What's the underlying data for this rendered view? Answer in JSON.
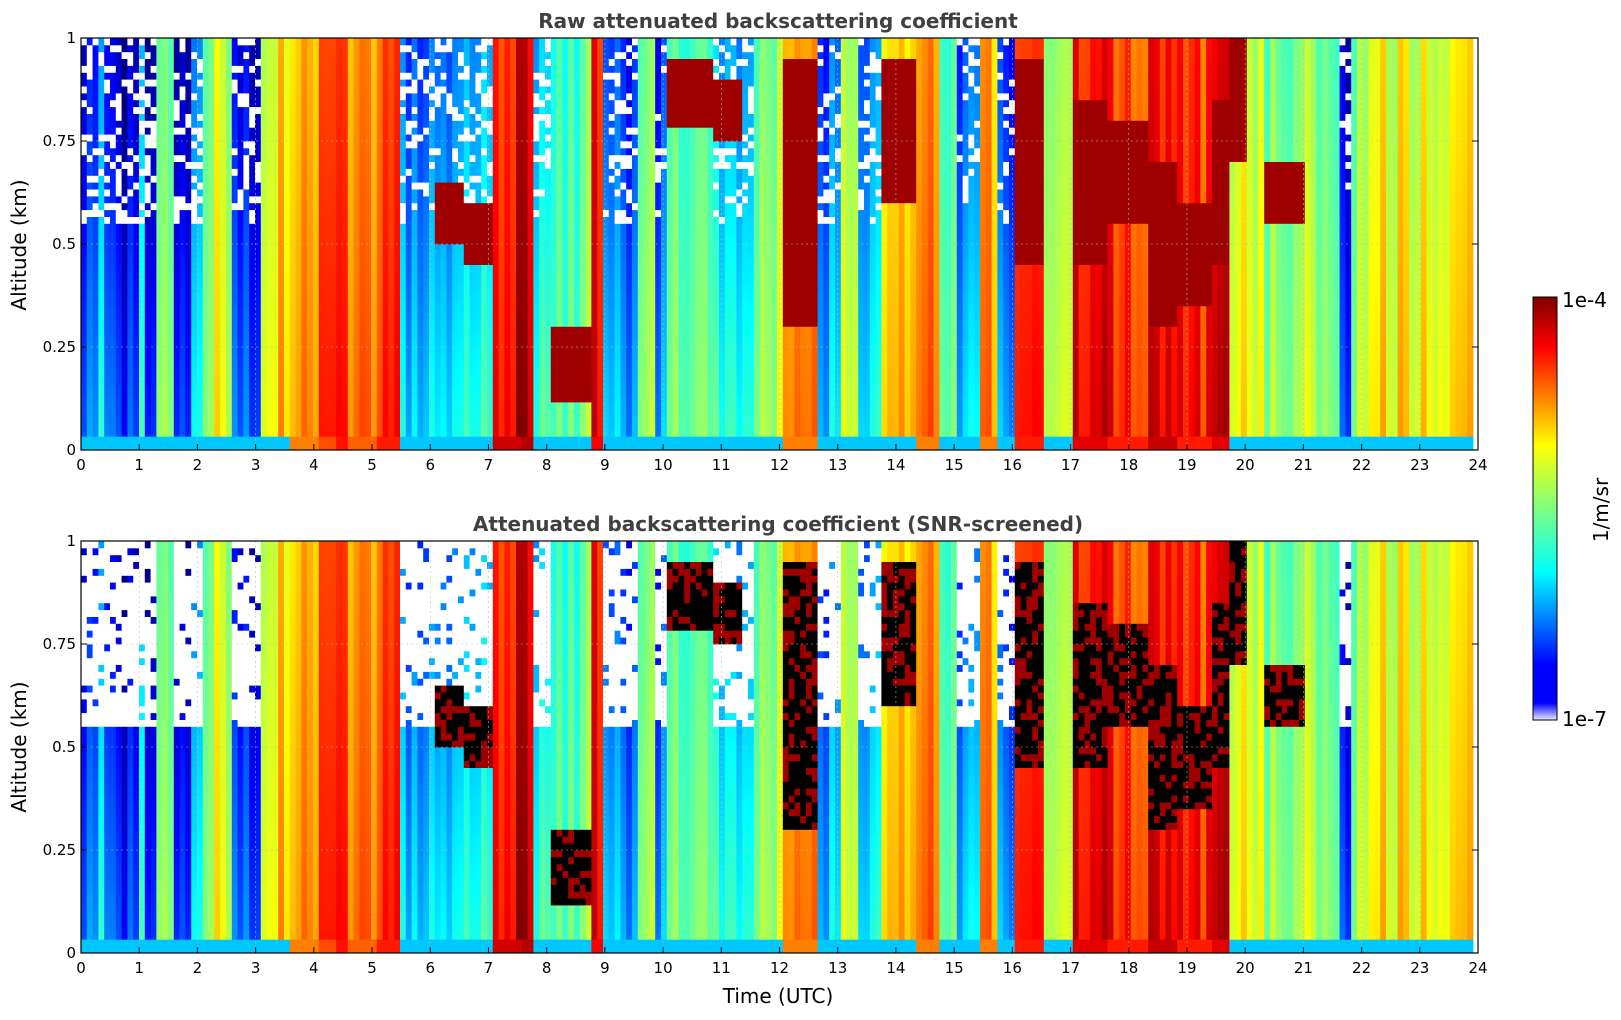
{
  "chart_data": [
    {
      "type": "heatmap",
      "title": "Raw attenuated backscattering coefficient",
      "ylabel": "Altitude (km)",
      "xlabel": "",
      "xlim": [
        0,
        24
      ],
      "ylim": [
        0,
        1
      ],
      "xticks": [
        "0",
        "1",
        "2",
        "3",
        "4",
        "5",
        "6",
        "7",
        "8",
        "9",
        "10",
        "11",
        "12",
        "13",
        "14",
        "15",
        "16",
        "17",
        "18",
        "19",
        "20",
        "21",
        "22",
        "23",
        "24"
      ],
      "yticks": [
        "0",
        "0.25",
        "0.5",
        "0.75",
        "1"
      ],
      "grid": true,
      "screened": false
    },
    {
      "type": "heatmap",
      "title": "Attenuated backscattering coefficient (SNR-screened)",
      "ylabel": "Altitude (km)",
      "xlabel": "Time (UTC)",
      "xlim": [
        0,
        24
      ],
      "ylim": [
        0,
        1
      ],
      "xticks": [
        "0",
        "1",
        "2",
        "3",
        "4",
        "5",
        "6",
        "7",
        "8",
        "9",
        "10",
        "11",
        "12",
        "13",
        "14",
        "15",
        "16",
        "17",
        "18",
        "19",
        "20",
        "21",
        "22",
        "23",
        "24"
      ],
      "yticks": [
        "0",
        "0.25",
        "0.5",
        "0.75",
        "1"
      ],
      "grid": true,
      "screened": true
    }
  ],
  "colorbar": {
    "label": "1/m/sr",
    "min_label": "1e-7",
    "max_label": "1e-4",
    "scale": "log",
    "colormap": "jet"
  },
  "profile": [
    {
      "start": 0.0,
      "level": 0.25,
      "cloud": null
    },
    {
      "start": 0.2,
      "level": 0.45,
      "cloud": null
    },
    {
      "start": 0.3,
      "level": 0.18,
      "cloud": null
    },
    {
      "start": 0.95,
      "level": 0.4,
      "cloud": null
    },
    {
      "start": 1.05,
      "level": 0.2,
      "cloud": null
    },
    {
      "start": 1.25,
      "level": 0.55,
      "cloud": null
    },
    {
      "start": 1.55,
      "level": 0.2,
      "cloud": null
    },
    {
      "start": 1.85,
      "level": 0.35,
      "cloud": null
    },
    {
      "start": 2.0,
      "level": 0.55,
      "cloud": null
    },
    {
      "start": 2.2,
      "level": 0.6,
      "cloud": null
    },
    {
      "start": 2.55,
      "level": 0.25,
      "cloud": null
    },
    {
      "start": 3.0,
      "level": 0.55,
      "cloud": null
    },
    {
      "start": 3.15,
      "level": 0.68,
      "cloud": null
    },
    {
      "start": 3.5,
      "level": 0.75,
      "cloud": null
    },
    {
      "start": 4.0,
      "level": 0.8,
      "cloud": null
    },
    {
      "start": 4.35,
      "level": 0.86,
      "cloud": null
    },
    {
      "start": 4.55,
      "level": 0.78,
      "cloud": null
    },
    {
      "start": 5.0,
      "level": 0.85,
      "cloud": null
    },
    {
      "start": 5.4,
      "level": 0.35,
      "cloud": null
    },
    {
      "start": 6.0,
      "level": 0.35,
      "cloud": [
        0.5,
        0.65
      ]
    },
    {
      "start": 6.5,
      "level": 0.45,
      "cloud": [
        0.45,
        0.6
      ]
    },
    {
      "start": 7.0,
      "level": 0.92,
      "cloud": null
    },
    {
      "start": 7.5,
      "level": 0.95,
      "cloud": null
    },
    {
      "start": 7.75,
      "level": 0.45,
      "cloud": null
    },
    {
      "start": 8.0,
      "level": 0.5,
      "cloud": [
        0.12,
        0.3
      ]
    },
    {
      "start": 8.7,
      "level": 0.88,
      "cloud": null
    },
    {
      "start": 8.95,
      "level": 0.3,
      "cloud": null
    },
    {
      "start": 9.5,
      "level": 0.5,
      "cloud": null
    },
    {
      "start": 9.8,
      "level": 0.3,
      "cloud": null
    },
    {
      "start": 10.0,
      "level": 0.5,
      "cloud": [
        0.78,
        0.95
      ]
    },
    {
      "start": 10.8,
      "level": 0.45,
      "cloud": [
        0.75,
        0.9
      ]
    },
    {
      "start": 11.3,
      "level": 0.35,
      "cloud": null
    },
    {
      "start": 11.5,
      "level": 0.55,
      "cloud": null
    },
    {
      "start": 12.0,
      "level": 0.75,
      "cloud": [
        0.3,
        0.95
      ]
    },
    {
      "start": 12.6,
      "level": 0.35,
      "cloud": null
    },
    {
      "start": 13.0,
      "level": 0.6,
      "cloud": null
    },
    {
      "start": 13.3,
      "level": 0.4,
      "cloud": null
    },
    {
      "start": 13.7,
      "level": 0.7,
      "cloud": [
        0.6,
        0.95
      ]
    },
    {
      "start": 14.3,
      "level": 0.75,
      "cloud": null
    },
    {
      "start": 14.7,
      "level": 0.5,
      "cloud": null
    },
    {
      "start": 15.0,
      "level": 0.35,
      "cloud": null
    },
    {
      "start": 15.4,
      "level": 0.75,
      "cloud": null
    },
    {
      "start": 15.7,
      "level": 0.3,
      "cloud": null
    },
    {
      "start": 16.0,
      "level": 0.85,
      "cloud": [
        0.45,
        0.95
      ]
    },
    {
      "start": 16.5,
      "level": 0.55,
      "cloud": null
    },
    {
      "start": 17.0,
      "level": 0.9,
      "cloud": [
        0.45,
        0.85
      ]
    },
    {
      "start": 17.6,
      "level": 0.85,
      "cloud": [
        0.55,
        0.8
      ]
    },
    {
      "start": 18.3,
      "level": 0.93,
      "cloud": [
        0.3,
        0.7
      ]
    },
    {
      "start": 18.8,
      "level": 0.85,
      "cloud": [
        0.35,
        0.6
      ]
    },
    {
      "start": 19.4,
      "level": 0.9,
      "cloud": [
        0.45,
        0.85
      ]
    },
    {
      "start": 19.7,
      "level": 0.62,
      "cloud": [
        0.7,
        1.0
      ]
    },
    {
      "start": 20.0,
      "level": 0.6,
      "cloud": null
    },
    {
      "start": 20.3,
      "level": 0.55,
      "cloud": [
        0.55,
        0.7
      ]
    },
    {
      "start": 21.0,
      "level": 0.55,
      "cloud": null
    },
    {
      "start": 21.55,
      "level": 0.2,
      "cloud": null
    },
    {
      "start": 21.75,
      "level": 0.55,
      "cloud": null
    },
    {
      "start": 22.0,
      "level": 0.65,
      "cloud": null
    },
    {
      "start": 23.9,
      "level": null,
      "cloud": null
    }
  ]
}
